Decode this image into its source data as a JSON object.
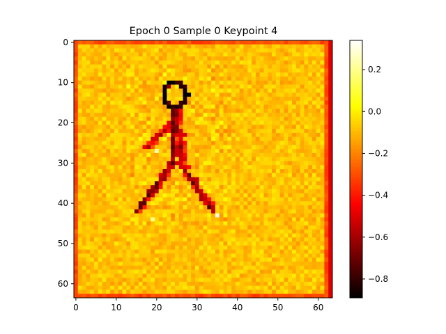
{
  "chart_data": {
    "type": "heatmap",
    "title": "Epoch 0 Sample 0 Keypoint 4",
    "grid_size": [
      64,
      64
    ],
    "xticks": [
      0,
      10,
      20,
      30,
      40,
      50,
      60
    ],
    "yticks": [
      0,
      10,
      20,
      30,
      40,
      50,
      60
    ],
    "xlim": [
      -0.5,
      63.5
    ],
    "ylim": [
      63.5,
      -0.5
    ],
    "colormap": "hot",
    "vmin": -0.89,
    "vmax": 0.34,
    "colorbar": {
      "ticks": [
        0.2,
        0.0,
        -0.2,
        -0.4,
        -0.6,
        -0.8
      ],
      "tick_labels": [
        "0.2",
        "0.0",
        "−0.2",
        "−0.4",
        "−0.6",
        "−0.8"
      ]
    },
    "background_value": -0.1,
    "border_value": -0.3,
    "figure_strokes": [
      {
        "part": "head",
        "shape": "ring",
        "center": [
          24.5,
          13
        ],
        "radius": 3,
        "value": -0.78
      },
      {
        "part": "torso",
        "from": [
          23.5,
          16
        ],
        "to": [
          24.5,
          28
        ],
        "value": -0.6
      },
      {
        "part": "torso",
        "from": [
          25,
          16
        ],
        "to": [
          26,
          29
        ],
        "value": -0.55
      },
      {
        "part": "left-arm",
        "from": [
          23,
          20
        ],
        "to": [
          17,
          26
        ],
        "value": -0.5
      },
      {
        "part": "left-leg",
        "from": [
          24,
          29
        ],
        "to": [
          15,
          42
        ],
        "value": -0.6
      },
      {
        "part": "left-leg",
        "from": [
          22,
          33
        ],
        "to": [
          16,
          40
        ],
        "value": -0.5
      },
      {
        "part": "right-leg",
        "from": [
          26,
          30
        ],
        "to": [
          33,
          41
        ],
        "value": -0.6
      },
      {
        "part": "right-leg",
        "from": [
          27,
          32
        ],
        "to": [
          34,
          42
        ],
        "value": -0.5
      }
    ],
    "bright_points": [
      {
        "x": 35,
        "y": 43,
        "value": 0.3
      },
      {
        "x": 19,
        "y": 44,
        "value": 0.2
      },
      {
        "x": 20,
        "y": 27,
        "value": 0.25
      }
    ]
  }
}
